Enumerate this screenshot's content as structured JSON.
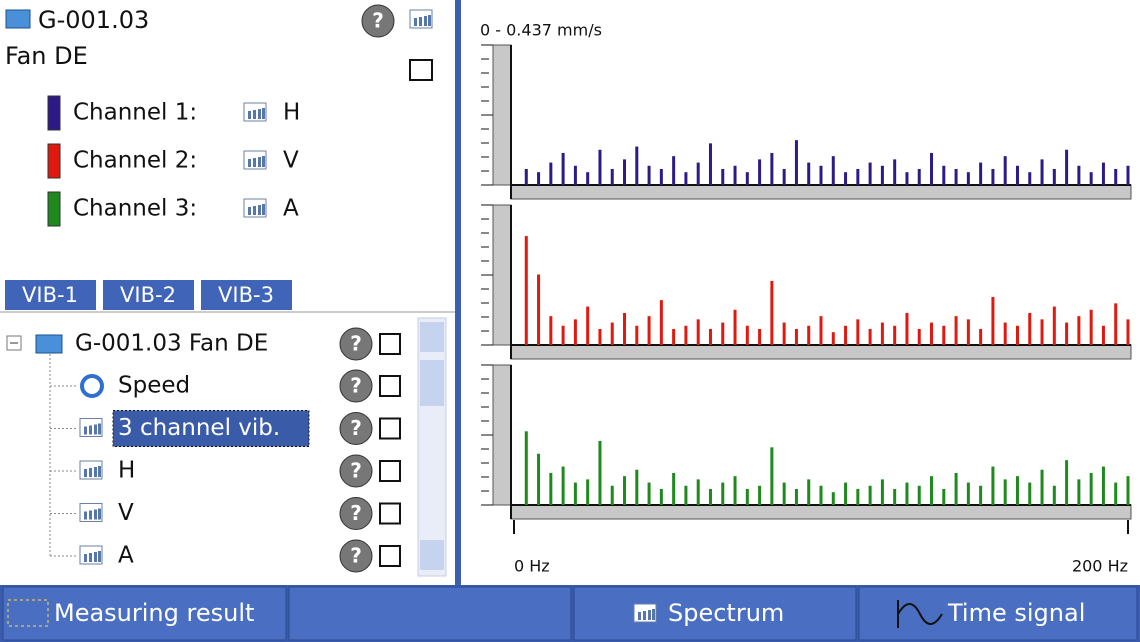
{
  "header": {
    "title": "G-001.03",
    "subtitle": "Fan DE"
  },
  "channel_axes": [
    "H",
    "V",
    "A"
  ],
  "tabs": [
    "VIB-1",
    "VIB-2",
    "VIB-3"
  ],
  "tree": {
    "root": "G-001.03 Fan DE",
    "items": [
      "Speed",
      "3 channel vib.",
      "H",
      "V",
      "A"
    ]
  },
  "toolbar": [
    "Measuring result",
    "Spectrum",
    "Time signal"
  ],
  "chart_data": {
    "type": "bar",
    "scale_label": "0  -  0.437 mm/s",
    "ylim": [
      0,
      0.437
    ],
    "xlim": [
      0,
      200
    ],
    "xticks": [
      {
        "value": 0,
        "label": "0 Hz"
      },
      {
        "value": 200,
        "label": "200 Hz"
      }
    ],
    "x": [
      4,
      8,
      12,
      16,
      20,
      24,
      28,
      32,
      36,
      40,
      44,
      48,
      52,
      56,
      60,
      64,
      68,
      72,
      76,
      80,
      84,
      88,
      92,
      96,
      100,
      104,
      108,
      112,
      116,
      120,
      124,
      128,
      132,
      136,
      140,
      144,
      148,
      152,
      156,
      160,
      164,
      168,
      172,
      176,
      180,
      184,
      188,
      192,
      196,
      200
    ],
    "series": [
      {
        "name": "Channel 1:",
        "color": "#2e1a86",
        "values": [
          0.05,
          0.04,
          0.07,
          0.1,
          0.06,
          0.04,
          0.11,
          0.05,
          0.08,
          0.12,
          0.06,
          0.05,
          0.09,
          0.04,
          0.07,
          0.13,
          0.05,
          0.06,
          0.04,
          0.08,
          0.1,
          0.05,
          0.14,
          0.07,
          0.06,
          0.09,
          0.04,
          0.05,
          0.07,
          0.06,
          0.08,
          0.04,
          0.05,
          0.1,
          0.06,
          0.05,
          0.04,
          0.07,
          0.05,
          0.09,
          0.06,
          0.04,
          0.08,
          0.05,
          0.11,
          0.06,
          0.04,
          0.07,
          0.05,
          0.06
        ]
      },
      {
        "name": "Channel 2:",
        "color": "#e0190f",
        "values": [
          0.34,
          0.22,
          0.09,
          0.06,
          0.08,
          0.12,
          0.05,
          0.07,
          0.1,
          0.06,
          0.09,
          0.14,
          0.05,
          0.06,
          0.08,
          0.05,
          0.07,
          0.11,
          0.06,
          0.05,
          0.2,
          0.07,
          0.05,
          0.06,
          0.09,
          0.04,
          0.06,
          0.08,
          0.05,
          0.07,
          0.06,
          0.1,
          0.05,
          0.07,
          0.06,
          0.09,
          0.08,
          0.05,
          0.15,
          0.07,
          0.06,
          0.1,
          0.08,
          0.12,
          0.07,
          0.09,
          0.11,
          0.06,
          0.13,
          0.08
        ]
      },
      {
        "name": "Channel 3:",
        "color": "#1e8a1e",
        "values": [
          0.23,
          0.16,
          0.1,
          0.12,
          0.07,
          0.08,
          0.2,
          0.06,
          0.09,
          0.11,
          0.07,
          0.05,
          0.1,
          0.06,
          0.08,
          0.05,
          0.07,
          0.09,
          0.05,
          0.06,
          0.18,
          0.07,
          0.05,
          0.08,
          0.06,
          0.04,
          0.07,
          0.05,
          0.06,
          0.08,
          0.05,
          0.07,
          0.06,
          0.09,
          0.05,
          0.1,
          0.07,
          0.06,
          0.12,
          0.08,
          0.09,
          0.07,
          0.11,
          0.06,
          0.14,
          0.08,
          0.1,
          0.12,
          0.07,
          0.09
        ]
      }
    ]
  }
}
